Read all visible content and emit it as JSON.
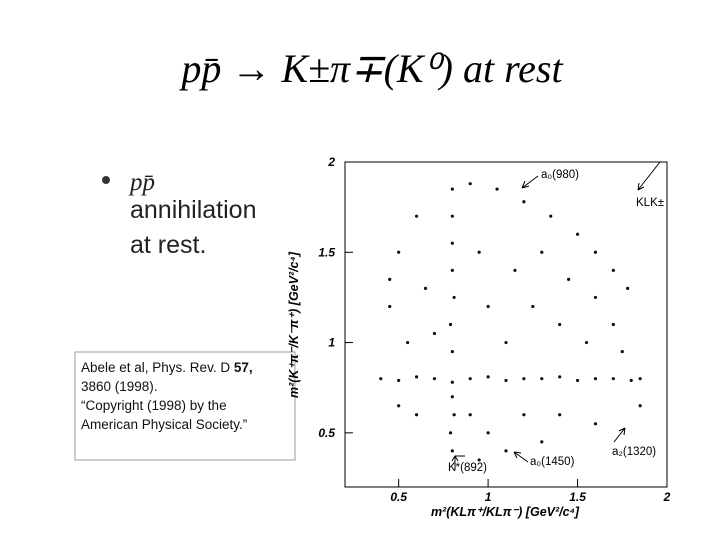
{
  "title": "pp̄ → K±π∓(K⁰)  at rest",
  "bullet": {
    "particle": "pp̄",
    "lines": [
      "annihilation",
      "at rest."
    ]
  },
  "citation": {
    "authors": "Abele et al,  Phys. Rev. D",
    "volume": "57,",
    "pages": "3860 (1998).",
    "copyright": [
      "“Copyright (1998) by the",
      "American Physical Society.”"
    ]
  },
  "chart_data": {
    "type": "scatter",
    "x_label": "m²(KLπ⁺/KLπ⁻) [GeV²/c⁴]",
    "y_label": "m²(K⁺π⁻/K⁻π⁺) [GeV²/c⁴]",
    "annotations": [
      "a₀(980)",
      "KLK±",
      "a₂(1320)",
      "a₀(1450)",
      "K*(892)"
    ],
    "xlim": [
      0.2,
      2
    ],
    "ylim": [
      0.2,
      2
    ],
    "xticks": [
      0.5,
      1,
      1.5,
      2
    ],
    "yticks": [
      0.5,
      1,
      1.5,
      2
    ],
    "color": "#111111",
    "x": [
      0.4,
      0.5,
      0.6,
      0.7,
      0.8,
      0.9,
      1.0,
      1.1,
      1.2,
      1.3,
      1.4,
      1.5,
      1.6,
      1.7,
      1.8,
      1.85,
      0.8,
      0.79,
      0.81,
      0.8,
      0.8,
      0.79,
      0.81,
      0.8,
      0.8,
      0.8,
      0.8,
      0.9,
      1.05,
      1.2,
      1.35,
      1.5,
      1.6,
      1.7,
      1.78,
      0.45,
      0.5,
      0.6,
      0.55,
      0.65,
      0.7,
      0.95,
      1.0,
      1.1,
      1.15,
      1.25,
      1.3,
      1.4,
      1.45,
      1.55,
      1.6,
      1.7,
      1.75,
      1.2,
      1.0,
      1.1,
      0.9,
      1.4,
      1.6,
      1.3,
      0.6,
      0.5,
      1.85,
      0.95,
      0.45
    ],
    "values": [
      0.8,
      0.79,
      0.81,
      0.8,
      0.78,
      0.8,
      0.81,
      0.79,
      0.8,
      0.8,
      0.81,
      0.79,
      0.8,
      0.8,
      0.79,
      0.8,
      0.4,
      0.5,
      0.6,
      0.7,
      0.95,
      1.1,
      1.25,
      1.4,
      1.55,
      1.7,
      1.85,
      1.88,
      1.85,
      1.78,
      1.7,
      1.6,
      1.5,
      1.4,
      1.3,
      1.2,
      1.5,
      1.7,
      1.0,
      1.3,
      1.05,
      1.5,
      1.2,
      1.0,
      1.4,
      1.2,
      1.5,
      1.1,
      1.35,
      1.0,
      1.25,
      1.1,
      0.95,
      0.6,
      0.5,
      0.4,
      0.6,
      0.6,
      0.55,
      0.45,
      0.6,
      0.65,
      0.65,
      0.35,
      1.35
    ]
  }
}
